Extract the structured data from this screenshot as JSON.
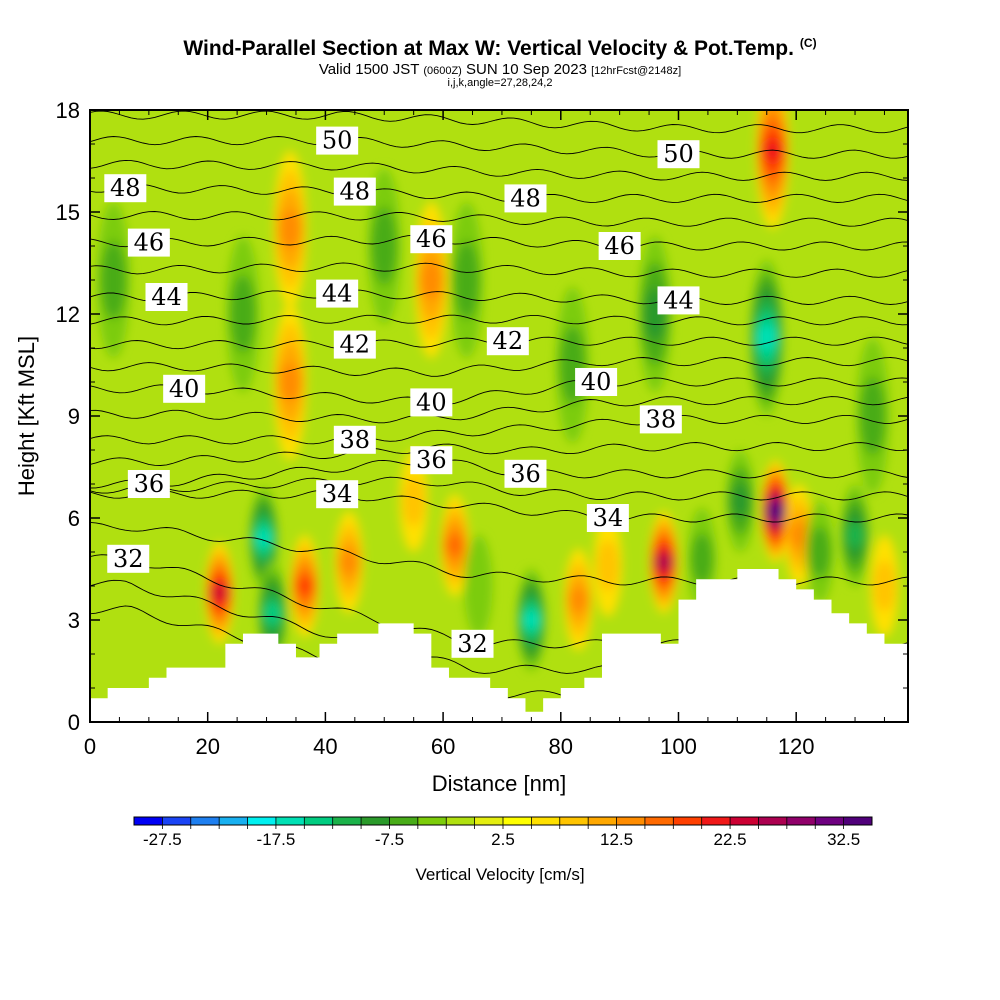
{
  "title": {
    "main": "Wind-Parallel Section at Max W: Vertical Velocity & Pot.Temp.",
    "copyright": "(C)",
    "valid_prefix": "Valid 1500 JST",
    "valid_utc": "(0600Z)",
    "valid_date": "SUN 10 Sep 2023",
    "forecast": "[12hrFcst@2148z]",
    "indices": "i,j,k,angle=27,28,24,2"
  },
  "chart_data": {
    "type": "heatmap",
    "xlabel": "Distance [nm]",
    "ylabel": "Height [Kft MSL]",
    "xlim": [
      0,
      139
    ],
    "ylim": [
      0,
      18
    ],
    "x_ticks": [
      0,
      20,
      40,
      60,
      80,
      100,
      120
    ],
    "y_ticks": [
      0,
      3,
      6,
      9,
      12,
      15,
      18
    ],
    "colorbar": {
      "label": "Vertical Velocity [cm/s]",
      "tick_labels": [
        "-27.5",
        "-17.5",
        "-7.5",
        "2.5",
        "12.5",
        "22.5",
        "32.5"
      ],
      "min": -30,
      "max": 35,
      "step": 2.5,
      "colors": [
        "#0000f5",
        "#1a44f5",
        "#1e7ff0",
        "#18b0f0",
        "#00f0f0",
        "#00e0b4",
        "#00cc80",
        "#1bb24a",
        "#2a9a2a",
        "#48ac18",
        "#7ccc0a",
        "#b0e010",
        "#e4ee10",
        "#ffff00",
        "#ffe000",
        "#ffc400",
        "#ffa800",
        "#ff8c00",
        "#ff6a00",
        "#ff4000",
        "#f01818",
        "#cc0033",
        "#ac0050",
        "#90006a",
        "#6e0080",
        "#50007a"
      ]
    },
    "terrain": [
      [
        0,
        0.7
      ],
      [
        3,
        0.7
      ],
      [
        3,
        1.0
      ],
      [
        10,
        1.0
      ],
      [
        10,
        1.3
      ],
      [
        13,
        1.3
      ],
      [
        13,
        1.6
      ],
      [
        23,
        1.6
      ],
      [
        23,
        2.3
      ],
      [
        26,
        2.3
      ],
      [
        26,
        2.6
      ],
      [
        32,
        2.6
      ],
      [
        32,
        2.3
      ],
      [
        35,
        2.3
      ],
      [
        35,
        1.9
      ],
      [
        39,
        1.9
      ],
      [
        39,
        2.3
      ],
      [
        42,
        2.3
      ],
      [
        42,
        2.6
      ],
      [
        49,
        2.6
      ],
      [
        49,
        2.9
      ],
      [
        55,
        2.9
      ],
      [
        55,
        2.6
      ],
      [
        58,
        2.6
      ],
      [
        58,
        1.6
      ],
      [
        61,
        1.6
      ],
      [
        61,
        1.3
      ],
      [
        68,
        1.3
      ],
      [
        68,
        1.0
      ],
      [
        71,
        1.0
      ],
      [
        71,
        0.7
      ],
      [
        74,
        0.7
      ],
      [
        74,
        0.3
      ],
      [
        77,
        0.3
      ],
      [
        77,
        0.7
      ],
      [
        80,
        0.7
      ],
      [
        80,
        1.0
      ],
      [
        84,
        1.0
      ],
      [
        84,
        1.3
      ],
      [
        87,
        1.3
      ],
      [
        87,
        2.6
      ],
      [
        97,
        2.6
      ],
      [
        97,
        2.3
      ],
      [
        100,
        2.3
      ],
      [
        100,
        3.6
      ],
      [
        103,
        3.6
      ],
      [
        103,
        4.2
      ],
      [
        110,
        4.2
      ],
      [
        110,
        4.5
      ],
      [
        117,
        4.5
      ],
      [
        117,
        4.2
      ],
      [
        120,
        4.2
      ],
      [
        120,
        3.9
      ],
      [
        123,
        3.9
      ],
      [
        123,
        3.6
      ],
      [
        126,
        3.6
      ],
      [
        126,
        3.2
      ],
      [
        129,
        3.2
      ],
      [
        129,
        2.9
      ],
      [
        132,
        2.9
      ],
      [
        132,
        2.6
      ],
      [
        135,
        2.6
      ],
      [
        135,
        2.3
      ],
      [
        139,
        2.3
      ]
    ],
    "theta_contours": {
      "unit": "K",
      "interval": 1,
      "labeled_levels": [
        {
          "value": "32",
          "x": 6.5,
          "y": 4.8
        },
        {
          "value": "32",
          "x": 65,
          "y": 2.3
        },
        {
          "value": "34",
          "x": 42,
          "y": 6.7
        },
        {
          "value": "34",
          "x": 88,
          "y": 6.0
        },
        {
          "value": "36",
          "x": 10,
          "y": 7.0
        },
        {
          "value": "36",
          "x": 58,
          "y": 7.7
        },
        {
          "value": "36",
          "x": 74,
          "y": 7.3
        },
        {
          "value": "38",
          "x": 45,
          "y": 8.3
        },
        {
          "value": "38",
          "x": 97,
          "y": 8.9
        },
        {
          "value": "40",
          "x": 16,
          "y": 9.8
        },
        {
          "value": "40",
          "x": 58,
          "y": 9.4
        },
        {
          "value": "40",
          "x": 86,
          "y": 10.0
        },
        {
          "value": "42",
          "x": 45,
          "y": 11.1
        },
        {
          "value": "42",
          "x": 71,
          "y": 11.2
        },
        {
          "value": "44",
          "x": 13,
          "y": 12.5
        },
        {
          "value": "44",
          "x": 42,
          "y": 12.6
        },
        {
          "value": "44",
          "x": 100,
          "y": 12.4
        },
        {
          "value": "46",
          "x": 10,
          "y": 14.1
        },
        {
          "value": "46",
          "x": 58,
          "y": 14.2
        },
        {
          "value": "46",
          "x": 90,
          "y": 14.0
        },
        {
          "value": "48",
          "x": 6,
          "y": 15.7
        },
        {
          "value": "48",
          "x": 45,
          "y": 15.6
        },
        {
          "value": "48",
          "x": 74,
          "y": 15.4
        },
        {
          "value": "50",
          "x": 42,
          "y": 17.1
        },
        {
          "value": "50",
          "x": 100,
          "y": 16.7
        }
      ]
    },
    "velocity_features": [
      {
        "x": 22,
        "y": 3.8,
        "w": 21
      },
      {
        "x": 29.5,
        "y": 5.4,
        "w": -16
      },
      {
        "x": 31,
        "y": 3.2,
        "w": -12
      },
      {
        "x": 36.5,
        "y": 4.0,
        "w": 14
      },
      {
        "x": 44,
        "y": 4.7,
        "w": 9
      },
      {
        "x": 55,
        "y": 6.5,
        "w": 5
      },
      {
        "x": 62,
        "y": 5.2,
        "w": 12
      },
      {
        "x": 66,
        "y": 4.0,
        "w": -3
      },
      {
        "x": 75,
        "y": 3.0,
        "w": -15
      },
      {
        "x": 83,
        "y": 3.6,
        "w": 11
      },
      {
        "x": 88,
        "y": 4.6,
        "w": 6
      },
      {
        "x": 97.5,
        "y": 4.7,
        "w": 22
      },
      {
        "x": 104,
        "y": 4.8,
        "w": -4
      },
      {
        "x": 110.5,
        "y": 6.5,
        "w": -7
      },
      {
        "x": 116.5,
        "y": 6.2,
        "w": 31
      },
      {
        "x": 120.5,
        "y": 5.5,
        "w": 9
      },
      {
        "x": 124,
        "y": 5.0,
        "w": -6
      },
      {
        "x": 130,
        "y": 5.5,
        "w": -11
      },
      {
        "x": 135,
        "y": 4.0,
        "w": 5
      },
      {
        "x": 34,
        "y": 14.5,
        "w": 10
      },
      {
        "x": 34,
        "y": 10.0,
        "w": 11
      },
      {
        "x": 58,
        "y": 13.0,
        "w": 10
      },
      {
        "x": 116,
        "y": 16.8,
        "w": 18
      },
      {
        "x": 115,
        "y": 11.3,
        "w": -14
      },
      {
        "x": 96,
        "y": 12.0,
        "w": -7
      },
      {
        "x": 50,
        "y": 14.0,
        "w": -6
      },
      {
        "x": 64,
        "y": 13.0,
        "w": -5
      },
      {
        "x": 26,
        "y": 12.0,
        "w": -5
      },
      {
        "x": 4,
        "y": 13.0,
        "w": -5
      },
      {
        "x": 82,
        "y": 10.5,
        "w": -4
      },
      {
        "x": 133,
        "y": 9.0,
        "w": -6
      }
    ]
  }
}
